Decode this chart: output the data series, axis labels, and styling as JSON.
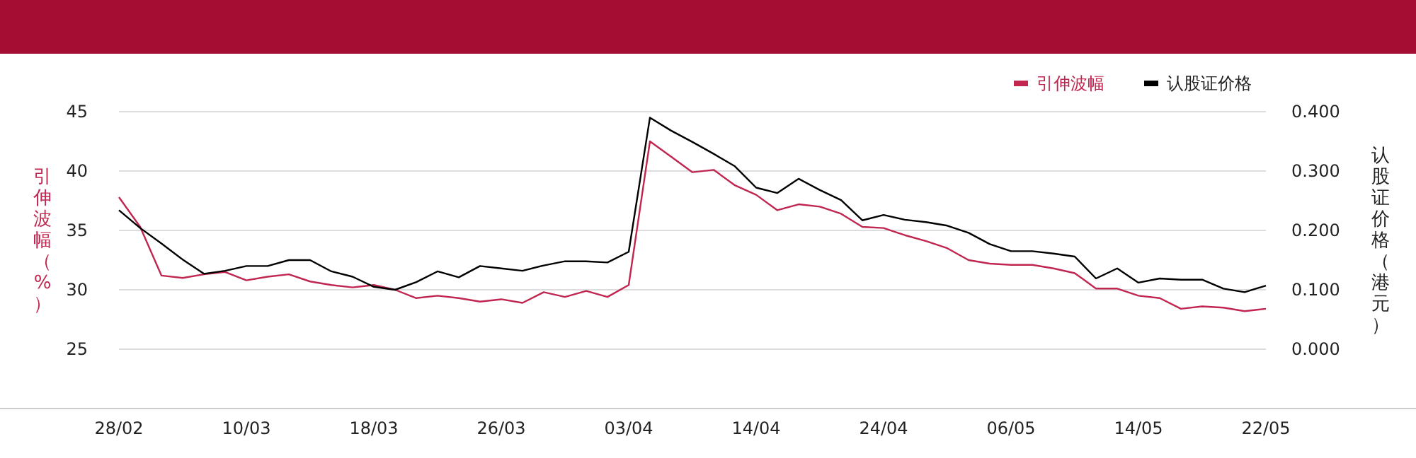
{
  "chart_data": {
    "type": "line",
    "ylabel": "引伸波幅（%）",
    "y2label": "认股证价格（港元）",
    "categories": [
      "28/02",
      null,
      null,
      null,
      null,
      null,
      "10/03",
      null,
      null,
      null,
      null,
      null,
      "18/03",
      null,
      null,
      null,
      null,
      null,
      "26/03",
      null,
      null,
      null,
      null,
      null,
      "03/04",
      null,
      null,
      null,
      null,
      null,
      "14/04",
      null,
      null,
      null,
      null,
      null,
      "24/04",
      null,
      null,
      null,
      null,
      null,
      "06/05",
      null,
      null,
      null,
      null,
      null,
      "14/05",
      null,
      null,
      null,
      null,
      null,
      "22/05"
    ],
    "series": [
      {
        "name": "引伸波幅",
        "color": "#c0264f",
        "values": [
          37.8,
          35.3,
          31.2,
          31.0,
          31.3,
          31.5,
          30.8,
          31.1,
          31.3,
          30.7,
          30.4,
          30.2,
          30.4,
          30.0,
          29.3,
          29.5,
          29.3,
          29.0,
          29.2,
          28.9,
          29.8,
          29.4,
          29.9,
          29.4,
          30.4,
          42.5,
          41.2,
          39.9,
          40.1,
          38.8,
          38.0,
          36.7,
          37.2,
          37.0,
          36.4,
          35.3,
          35.2,
          34.6,
          34.1,
          33.5,
          32.5,
          32.2,
          32.1,
          32.1,
          31.8,
          31.4,
          30.1,
          30.1,
          29.5,
          29.3,
          28.4,
          28.6,
          28.5,
          28.2,
          28.4
        ]
      },
      {
        "name": "认股证价格",
        "color": "#000000",
        "axis": "y2",
        "values": [
          0.234,
          0.204,
          0.178,
          0.151,
          0.127,
          0.132,
          0.14,
          0.14,
          0.15,
          0.15,
          0.131,
          0.122,
          0.105,
          0.1,
          0.113,
          0.131,
          0.121,
          0.14,
          0.136,
          0.132,
          0.141,
          0.148,
          0.148,
          0.146,
          0.164,
          0.39,
          0.368,
          0.349,
          0.329,
          0.308,
          0.272,
          0.263,
          0.287,
          0.268,
          0.251,
          0.217,
          0.226,
          0.218,
          0.214,
          0.208,
          0.196,
          0.177,
          0.165,
          0.165,
          0.161,
          0.156,
          0.119,
          0.136,
          0.112,
          0.119,
          0.117,
          0.117,
          0.102,
          0.096,
          0.107
        ]
      }
    ],
    "ylim": [
      20,
      45
    ],
    "yticks": [
      25,
      30,
      35,
      40,
      45
    ],
    "y2lim": [
      -0.1,
      0.4
    ],
    "y2ticks": [
      {
        "value": 0,
        "label": "0.000"
      },
      {
        "value": 0.1,
        "label": "0.100"
      },
      {
        "value": 0.2,
        "label": "0.200"
      },
      {
        "value": 0.3,
        "label": "0.300"
      },
      {
        "value": 0.4,
        "label": "0.400"
      }
    ],
    "grid": "y",
    "legend": "top right",
    "marker": "none",
    "line_style": "solid"
  }
}
